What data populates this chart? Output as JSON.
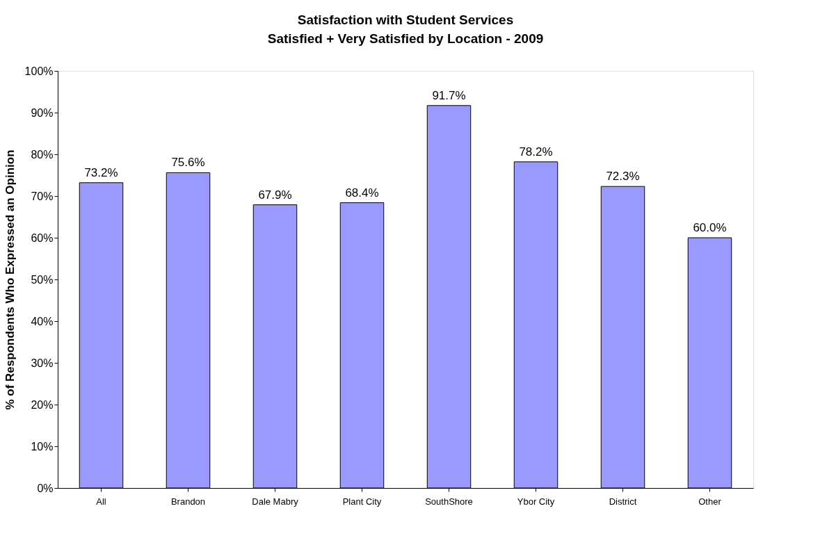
{
  "chart_data": {
    "type": "bar",
    "title": "Satisfaction with Student Services",
    "subtitle": "Satisfied + Very Satisfied by Location - 2009",
    "ylabel": "% of Respondents Who Expressed an Opinion",
    "categories": [
      "All",
      "Brandon",
      "Dale Mabry",
      "Plant City",
      "SouthShore",
      "Ybor City",
      "District",
      "Other"
    ],
    "values": [
      73.2,
      75.6,
      67.9,
      68.4,
      91.7,
      78.2,
      72.3,
      60.0
    ],
    "value_labels": [
      "73.2%",
      "75.6%",
      "67.9%",
      "68.4%",
      "91.7%",
      "78.2%",
      "72.3%",
      "60.0%"
    ],
    "color": "#9999ff",
    "ylim": [
      0,
      100
    ],
    "yticks": [
      {
        "value": 0,
        "label": "0%"
      },
      {
        "value": 10,
        "label": "10%"
      },
      {
        "value": 20,
        "label": "20%"
      },
      {
        "value": 30,
        "label": "30%"
      },
      {
        "value": 40,
        "label": "40%"
      },
      {
        "value": 50,
        "label": "50%"
      },
      {
        "value": 60,
        "label": "60%"
      },
      {
        "value": 70,
        "label": "70%"
      },
      {
        "value": 80,
        "label": "80%"
      },
      {
        "value": 90,
        "label": "90%"
      },
      {
        "value": 100,
        "label": "100%"
      }
    ],
    "grid": false
  }
}
